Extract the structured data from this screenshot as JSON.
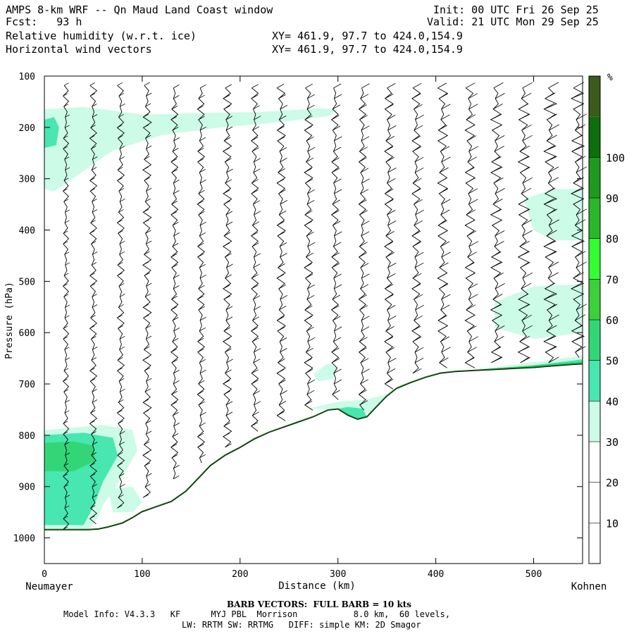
{
  "header": {
    "title_line": "AMPS 8-km WRF -- Qn Maud Land Coast window",
    "fcst_line": "Fcst:   93 h",
    "init_line": "Init: 00 UTC Fri 26 Sep 25",
    "valid_line": "Valid: 21 UTC Mon 29 Sep 25",
    "field1": "Relative humidity (w.r.t. ice)",
    "field2": "Horizontal wind vectors",
    "xy1": "XY= 461.9, 97.7 to 424.0,154.9",
    "xy2": "XY= 461.9, 97.7 to 424.0,154.9"
  },
  "footer": {
    "barb_note": "BARB VECTORS:  FULL BARB = 10 kts",
    "model_line": "Model Info: V4.3.3   KF      MYJ PBL  Morrison           8.0 km,  60 levels,",
    "physics_line": "LW: RRTM SW: RRTMG   DIFF: simple KM: 2D Smagor"
  },
  "chart_data": {
    "type": "cross-section",
    "xlabel": "Distance (km)",
    "ylabel": "Pressure (hPa)",
    "xlim": [
      0,
      550
    ],
    "ylim": [
      1050,
      100
    ],
    "x_ticks": [
      0,
      100,
      200,
      300,
      400,
      500
    ],
    "y_ticks": [
      100,
      200,
      300,
      400,
      500,
      600,
      700,
      800,
      900,
      1000
    ],
    "x_start_label": "Neumayer",
    "x_end_label": "Kohnen",
    "colorbar": {
      "unit": "%",
      "levels": [
        10,
        20,
        30,
        40,
        50,
        60,
        70,
        80,
        90,
        100
      ],
      "colors": [
        "#ffffff",
        "#ffffff",
        "#ffffff",
        "#ccfbe8",
        "#48e6b0",
        "#33d677",
        "#3dcf3c",
        "#33ff33",
        "#2bb72b",
        "#1f9a1f",
        "#0c6e0c",
        "#3c5a1a"
      ]
    },
    "terrain": [
      {
        "x": 0,
        "p": 985
      },
      {
        "x": 25,
        "p": 985
      },
      {
        "x": 45,
        "p": 985
      },
      {
        "x": 55,
        "p": 984
      },
      {
        "x": 65,
        "p": 980
      },
      {
        "x": 80,
        "p": 972
      },
      {
        "x": 90,
        "p": 962
      },
      {
        "x": 100,
        "p": 950
      },
      {
        "x": 115,
        "p": 940
      },
      {
        "x": 130,
        "p": 930
      },
      {
        "x": 145,
        "p": 910
      },
      {
        "x": 160,
        "p": 880
      },
      {
        "x": 170,
        "p": 860
      },
      {
        "x": 185,
        "p": 840
      },
      {
        "x": 200,
        "p": 825
      },
      {
        "x": 215,
        "p": 808
      },
      {
        "x": 230,
        "p": 795
      },
      {
        "x": 245,
        "p": 785
      },
      {
        "x": 260,
        "p": 775
      },
      {
        "x": 275,
        "p": 765
      },
      {
        "x": 290,
        "p": 752
      },
      {
        "x": 300,
        "p": 750
      },
      {
        "x": 310,
        "p": 762
      },
      {
        "x": 320,
        "p": 770
      },
      {
        "x": 330,
        "p": 765
      },
      {
        "x": 340,
        "p": 745
      },
      {
        "x": 350,
        "p": 725
      },
      {
        "x": 360,
        "p": 710
      },
      {
        "x": 375,
        "p": 698
      },
      {
        "x": 390,
        "p": 688
      },
      {
        "x": 405,
        "p": 680
      },
      {
        "x": 420,
        "p": 677
      },
      {
        "x": 440,
        "p": 675
      },
      {
        "x": 460,
        "p": 673
      },
      {
        "x": 480,
        "p": 671
      },
      {
        "x": 500,
        "p": 669
      },
      {
        "x": 520,
        "p": 666
      },
      {
        "x": 540,
        "p": 663
      },
      {
        "x": 550,
        "p": 662
      }
    ],
    "rh_regions": [
      {
        "level": "30-40",
        "points": [
          [
            0,
            165
          ],
          [
            40,
            160
          ],
          [
            100,
            175
          ],
          [
            160,
            172
          ],
          [
            220,
            170
          ],
          [
            280,
            163
          ],
          [
            300,
            165
          ],
          [
            290,
            178
          ],
          [
            240,
            190
          ],
          [
            180,
            200
          ],
          [
            120,
            215
          ],
          [
            70,
            245
          ],
          [
            40,
            285
          ],
          [
            10,
            325
          ],
          [
            0,
            320
          ]
        ]
      },
      {
        "level": "40-50",
        "points": [
          [
            0,
            185
          ],
          [
            10,
            180
          ],
          [
            15,
            200
          ],
          [
            12,
            235
          ],
          [
            0,
            240
          ]
        ]
      },
      {
        "level": "30-40",
        "points": [
          [
            0,
            790
          ],
          [
            60,
            780
          ],
          [
            90,
            790
          ],
          [
            95,
            830
          ],
          [
            80,
            880
          ],
          [
            70,
            910
          ],
          [
            60,
            935
          ],
          [
            55,
            960
          ],
          [
            45,
            985
          ],
          [
            0,
            985
          ]
        ]
      },
      {
        "level": "40-50",
        "points": [
          [
            0,
            800
          ],
          [
            40,
            795
          ],
          [
            70,
            805
          ],
          [
            75,
            840
          ],
          [
            60,
            890
          ],
          [
            50,
            940
          ],
          [
            40,
            975
          ],
          [
            0,
            975
          ]
        ]
      },
      {
        "level": "50-60",
        "points": [
          [
            0,
            815
          ],
          [
            30,
            812
          ],
          [
            50,
            820
          ],
          [
            52,
            850
          ],
          [
            30,
            870
          ],
          [
            0,
            870
          ]
        ]
      },
      {
        "level": "30-40",
        "points": [
          [
            65,
            905
          ],
          [
            90,
            900
          ],
          [
            100,
            930
          ],
          [
            90,
            950
          ],
          [
            70,
            950
          ]
        ]
      },
      {
        "level": "30-40",
        "points": [
          [
            490,
            340
          ],
          [
            520,
            320
          ],
          [
            550,
            320
          ],
          [
            550,
            420
          ],
          [
            520,
            420
          ],
          [
            500,
            400
          ]
        ]
      },
      {
        "level": "30-40",
        "points": [
          [
            460,
            540
          ],
          [
            500,
            510
          ],
          [
            550,
            505
          ],
          [
            550,
            600
          ],
          [
            500,
            612
          ],
          [
            460,
            590
          ]
        ]
      },
      {
        "level": "30-40",
        "points": [
          [
            275,
            680
          ],
          [
            290,
            660
          ],
          [
            300,
            668
          ],
          [
            295,
            690
          ],
          [
            280,
            695
          ]
        ]
      },
      {
        "level": "30-40",
        "points": [
          [
            270,
            748
          ],
          [
            300,
            735
          ],
          [
            330,
            730
          ],
          [
            350,
            720
          ],
          [
            365,
            700
          ],
          [
            400,
            685
          ],
          [
            450,
            670
          ],
          [
            550,
            645
          ],
          [
            550,
            662
          ],
          [
            420,
            677
          ],
          [
            360,
            710
          ],
          [
            340,
            745
          ],
          [
            320,
            770
          ],
          [
            300,
            750
          ]
        ]
      },
      {
        "level": "40-50",
        "points": [
          [
            290,
            752
          ],
          [
            310,
            745
          ],
          [
            325,
            748
          ],
          [
            330,
            765
          ],
          [
            320,
            770
          ],
          [
            305,
            760
          ]
        ]
      },
      {
        "level": "40-50",
        "points": [
          [
            380,
            692
          ],
          [
            420,
            676
          ],
          [
            480,
            668
          ],
          [
            550,
            652
          ],
          [
            550,
            662
          ],
          [
            480,
            671
          ],
          [
            420,
            677
          ]
        ]
      },
      {
        "level": "50-60",
        "points": [
          [
            440,
            672
          ],
          [
            500,
            664
          ],
          [
            550,
            656
          ],
          [
            550,
            662
          ],
          [
            500,
            669
          ],
          [
            440,
            675
          ]
        ]
      }
    ],
    "wind_columns": [
      {
        "x": 22,
        "dir": 1,
        "top": 110,
        "bottom": 990,
        "wiggle": 4
      },
      {
        "x": 50,
        "dir": 1,
        "top": 110,
        "bottom": 985,
        "wiggle": 5
      },
      {
        "x": 78,
        "dir": 1,
        "top": 110,
        "bottom": 950,
        "wiggle": 5
      },
      {
        "x": 105,
        "dir": 1,
        "top": 110,
        "bottom": 930,
        "wiggle": 6
      },
      {
        "x": 133,
        "dir": 1,
        "top": 115,
        "bottom": 900,
        "wiggle": 5
      },
      {
        "x": 160,
        "dir": 1,
        "top": 115,
        "bottom": 860,
        "wiggle": 5
      },
      {
        "x": 187,
        "dir": 1,
        "top": 115,
        "bottom": 830,
        "wiggle": 6
      },
      {
        "x": 215,
        "dir": 1,
        "top": 115,
        "bottom": 800,
        "wiggle": 5
      },
      {
        "x": 242,
        "dir": 1,
        "top": 115,
        "bottom": 780,
        "wiggle": 6
      },
      {
        "x": 270,
        "dir": 1,
        "top": 115,
        "bottom": 765,
        "wiggle": 6
      },
      {
        "x": 297,
        "dir": 1,
        "top": 115,
        "bottom": 745,
        "wiggle": 5
      },
      {
        "x": 325,
        "dir": 1,
        "top": 115,
        "bottom": 760,
        "wiggle": 5
      },
      {
        "x": 352,
        "dir": 1,
        "top": 115,
        "bottom": 720,
        "wiggle": 6
      },
      {
        "x": 380,
        "dir": 1,
        "top": 115,
        "bottom": 695,
        "wiggle": 6
      },
      {
        "x": 407,
        "dir": 1,
        "top": 115,
        "bottom": 680,
        "wiggle": 7
      },
      {
        "x": 435,
        "dir": 1,
        "top": 115,
        "bottom": 675,
        "wiggle": 7
      },
      {
        "x": 462,
        "dir": 1,
        "top": 115,
        "bottom": 672,
        "wiggle": 8
      },
      {
        "x": 490,
        "dir": 1,
        "top": 115,
        "bottom": 670,
        "wiggle": 8
      },
      {
        "x": 517,
        "dir": 1,
        "top": 115,
        "bottom": 667,
        "wiggle": 9
      },
      {
        "x": 545,
        "dir": 1,
        "top": 115,
        "bottom": 663,
        "wiggle": 9
      }
    ]
  }
}
